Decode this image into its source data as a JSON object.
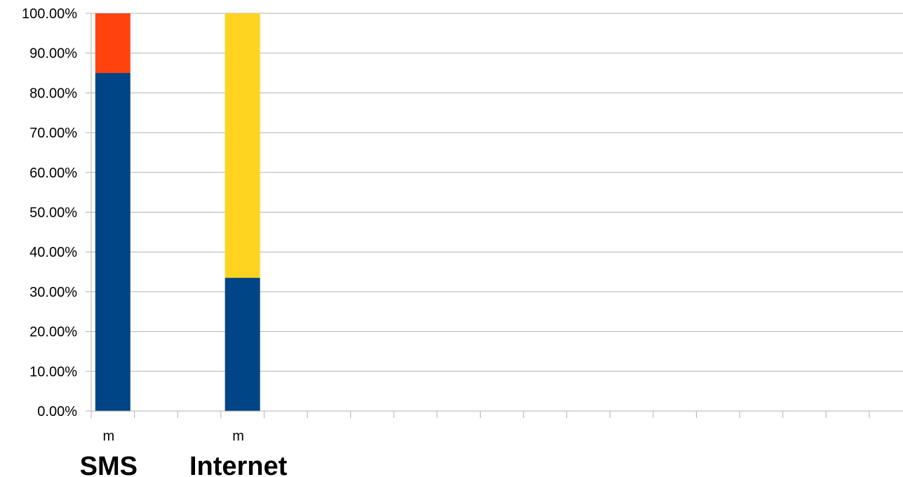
{
  "chart_data": {
    "type": "bar",
    "stacked": true,
    "title": "",
    "xlabel": "",
    "ylabel": "",
    "ylim": [
      0,
      100
    ],
    "y_ticks": [
      "0.00%",
      "10.00%",
      "20.00%",
      "30.00%",
      "40.00%",
      "50.00%",
      "60.00%",
      "70.00%",
      "80.00%",
      "90.00%",
      "100.00%"
    ],
    "grid": true,
    "legend": "none",
    "slot_count": 18,
    "categories": [
      {
        "sub_label": "m",
        "group_label": "SMS",
        "slot": 0
      },
      {
        "sub_label": "m",
        "group_label": "Internet",
        "slot": 3
      }
    ],
    "series": [
      {
        "color": "#004586",
        "values": [
          85,
          33.5
        ]
      },
      {
        "color": "#ff420e",
        "values": [
          15,
          0
        ]
      },
      {
        "color": "#ffd320",
        "values": [
          0,
          66.5
        ]
      }
    ]
  }
}
